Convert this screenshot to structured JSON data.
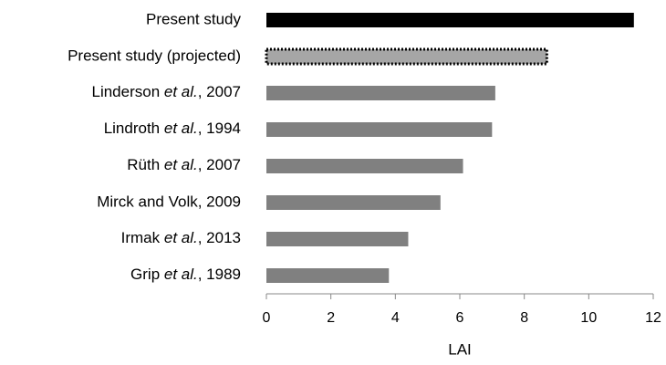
{
  "chart_data": {
    "type": "bar",
    "orientation": "horizontal",
    "x_label": "LAI",
    "categories": [
      "Present study",
      "Present study (projected)",
      "Linderson et al., 2007",
      "Lindroth et al., 1994",
      "Rüth et al., 2007",
      "Mirck and Volk, 2009",
      "Irmak et al., 2013",
      "Grip et al., 1989"
    ],
    "values": [
      11.4,
      8.7,
      7.1,
      7.0,
      6.1,
      5.4,
      4.4,
      3.8
    ],
    "colors": [
      "#000000",
      "#a6a6a6",
      "#808080",
      "#808080",
      "#808080",
      "#808080",
      "#808080",
      "#808080"
    ],
    "xlim": [
      0,
      12
    ],
    "xticks": [
      0,
      2,
      4,
      6,
      8,
      10,
      12
    ],
    "grid": false
  }
}
